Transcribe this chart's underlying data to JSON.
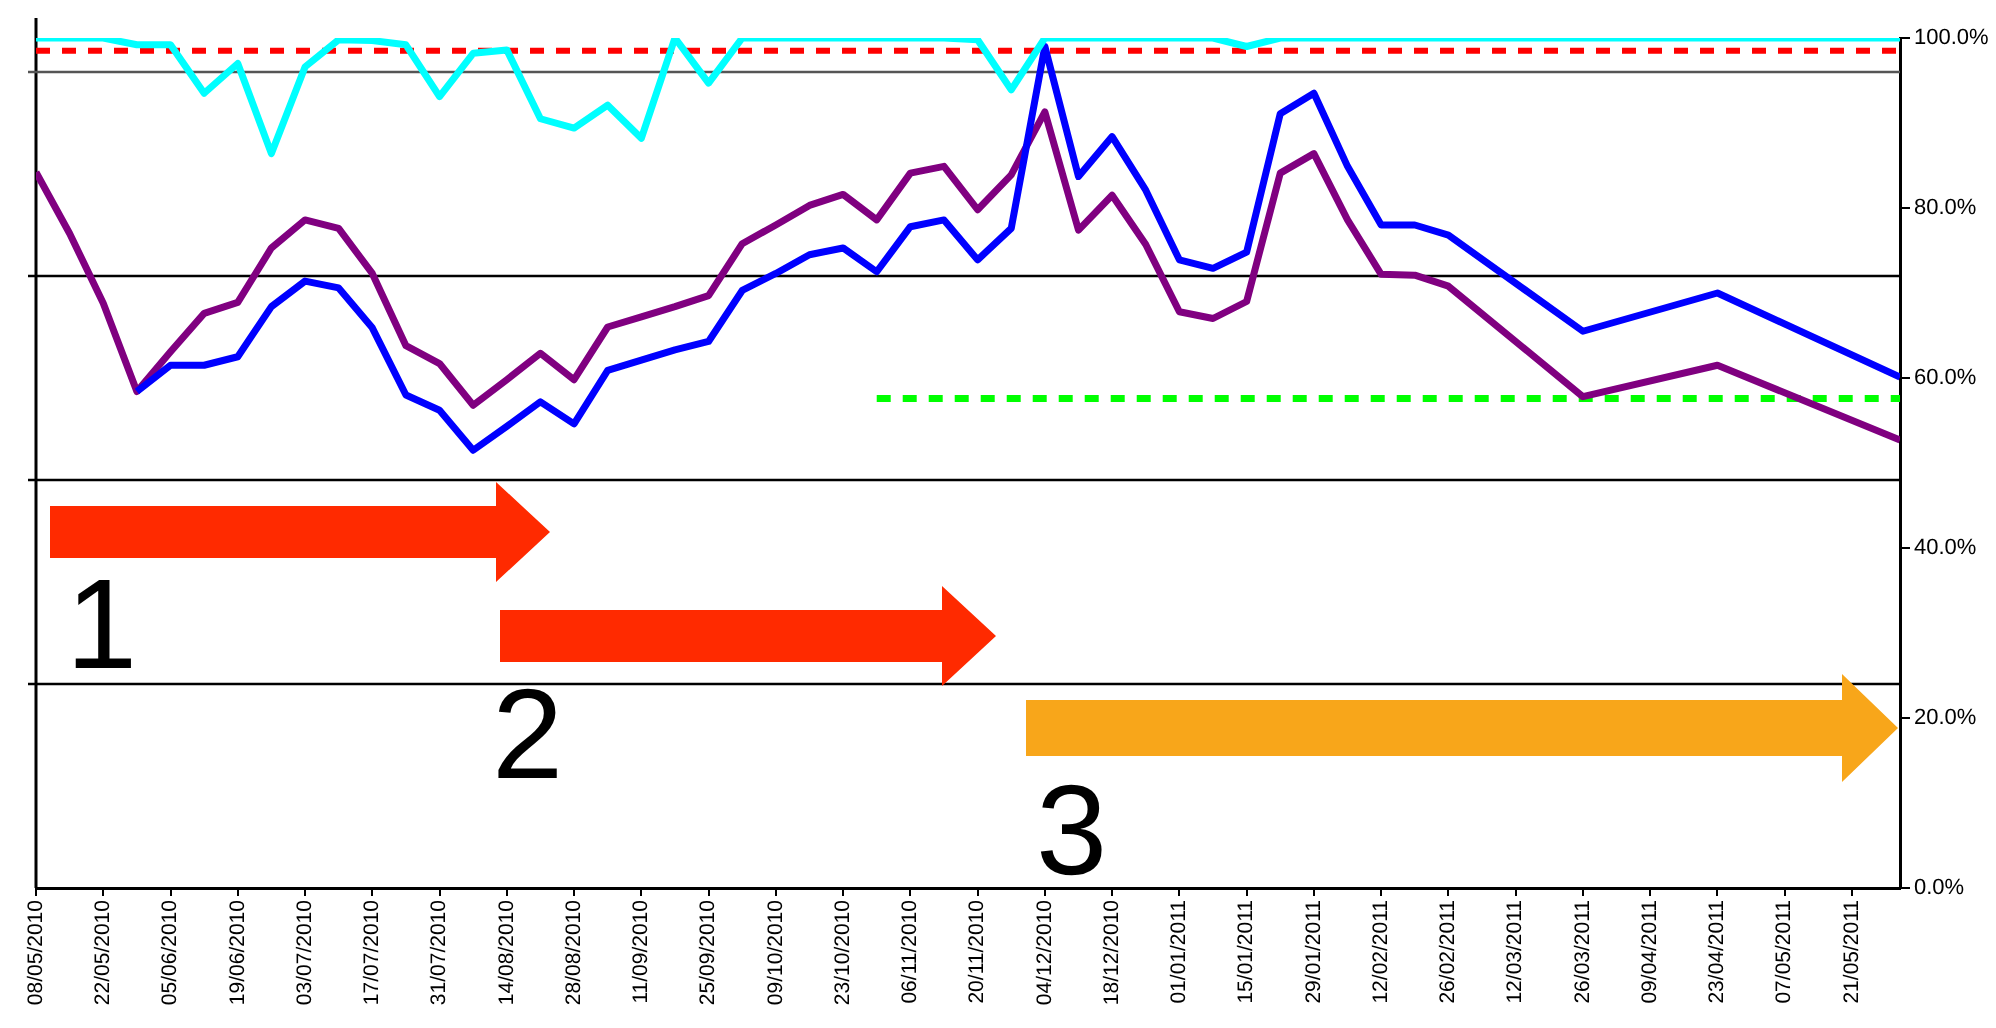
{
  "chart_data": {
    "type": "line",
    "x": [
      "2010-05-08",
      "2010-05-15",
      "2010-05-22",
      "2010-05-29",
      "2010-06-05",
      "2010-06-12",
      "2010-06-19",
      "2010-06-26",
      "2010-07-03",
      "2010-07-10",
      "2010-07-17",
      "2010-07-24",
      "2010-07-31",
      "2010-08-07",
      "2010-08-14",
      "2010-08-21",
      "2010-08-28",
      "2010-09-04",
      "2010-09-11",
      "2010-09-18",
      "2010-09-25",
      "2010-10-02",
      "2010-10-09",
      "2010-10-16",
      "2010-10-23",
      "2010-10-30",
      "2010-11-06",
      "2010-11-13",
      "2010-11-20",
      "2010-11-27",
      "2010-12-04",
      "2010-12-11",
      "2010-12-18",
      "2010-12-25",
      "2011-01-01",
      "2011-01-08",
      "2011-01-15",
      "2011-01-22",
      "2011-01-29",
      "2011-02-05",
      "2011-02-12",
      "2011-02-19",
      "2011-02-26",
      "2011-03-26",
      "2011-04-23",
      "2011-05-31"
    ],
    "xlim": [
      "2010-05-08",
      "2011-05-31"
    ],
    "xticks": [
      {
        "value": "2010-05-08",
        "label": "08/05/2010"
      },
      {
        "value": "2010-05-22",
        "label": "22/05/2010"
      },
      {
        "value": "2010-06-05",
        "label": "05/06/2010"
      },
      {
        "value": "2010-06-19",
        "label": "19/06/2010"
      },
      {
        "value": "2010-07-03",
        "label": "03/07/2010"
      },
      {
        "value": "2010-07-17",
        "label": "17/07/2010"
      },
      {
        "value": "2010-07-31",
        "label": "31/07/2010"
      },
      {
        "value": "2010-08-14",
        "label": "14/08/2010"
      },
      {
        "value": "2010-08-28",
        "label": "28/08/2010"
      },
      {
        "value": "2010-09-11",
        "label": "11/09/2010"
      },
      {
        "value": "2010-09-25",
        "label": "25/09/2010"
      },
      {
        "value": "2010-10-09",
        "label": "09/10/2010"
      },
      {
        "value": "2010-10-23",
        "label": "23/10/2010"
      },
      {
        "value": "2010-11-06",
        "label": "06/11/2010"
      },
      {
        "value": "2010-11-20",
        "label": "20/11/2010"
      },
      {
        "value": "2010-12-04",
        "label": "04/12/2010"
      },
      {
        "value": "2010-12-18",
        "label": "18/12/2010"
      },
      {
        "value": "2011-01-01",
        "label": "01/01/2011"
      },
      {
        "value": "2011-01-15",
        "label": "15/01/2011"
      },
      {
        "value": "2011-01-29",
        "label": "29/01/2011"
      },
      {
        "value": "2011-02-12",
        "label": "12/02/2011"
      },
      {
        "value": "2011-02-26",
        "label": "26/02/2011"
      },
      {
        "value": "2011-03-12",
        "label": "12/03/2011"
      },
      {
        "value": "2011-03-26",
        "label": "26/03/2011"
      },
      {
        "value": "2011-04-09",
        "label": "09/04/2011"
      },
      {
        "value": "2011-04-23",
        "label": "23/04/2011"
      },
      {
        "value": "2011-05-07",
        "label": "07/05/2011"
      },
      {
        "value": "2011-05-21",
        "label": "21/05/2011"
      }
    ],
    "ylim": [
      0,
      100
    ],
    "yticks": [
      {
        "value": 0,
        "label": "0.0%"
      },
      {
        "value": 20,
        "label": "20.0%"
      },
      {
        "value": 40,
        "label": "40.0%"
      },
      {
        "value": 60,
        "label": "60.0%"
      },
      {
        "value": 80,
        "label": "80.0%"
      },
      {
        "value": 100,
        "label": "100.0%"
      }
    ],
    "grid": false,
    "legend": false,
    "marker": "none",
    "line_style": "solid",
    "series": [
      {
        "color": "#00ffff",
        "values": [
          100,
          100,
          100,
          99.2,
          99.2,
          93.5,
          97.0,
          86.4,
          96.6,
          99.8,
          99.7,
          99.2,
          93.1,
          98.2,
          98.6,
          90.5,
          89.4,
          92.1,
          88.2,
          100,
          94.7,
          100,
          100,
          100,
          100,
          100,
          100,
          100,
          99.8,
          93.9,
          100,
          100,
          100,
          100,
          100,
          100,
          99.0,
          100,
          100,
          100,
          100,
          100,
          100,
          100,
          100,
          100
        ]
      },
      {
        "color": "#0000ff",
        "values": [
          null,
          null,
          null,
          58.4,
          61.5,
          61.5,
          62.5,
          68.4,
          71.4,
          70.6,
          65.9,
          58.0,
          56.2,
          51.5,
          54.3,
          57.2,
          54.6,
          60.9,
          62.1,
          63.3,
          64.3,
          70.3,
          72.3,
          74.5,
          75.3,
          72.5,
          77.8,
          78.6,
          73.9,
          77.6,
          99.0,
          83.7,
          88.4,
          82.1,
          73.9,
          72.9,
          74.8,
          91.1,
          93.5,
          84.9,
          78.0,
          78.0,
          76.8,
          65.5,
          70.0,
          60.1
        ]
      },
      {
        "color": "#800080",
        "values": [
          84.2,
          77.0,
          68.8,
          58.4,
          63.1,
          67.6,
          68.9,
          75.3,
          78.6,
          77.6,
          72.3,
          63.8,
          61.7,
          56.8,
          59.8,
          62.9,
          59.8,
          66.0,
          67.2,
          68.4,
          69.7,
          75.8,
          78.0,
          80.3,
          81.6,
          78.6,
          84.1,
          84.9,
          79.8,
          83.9,
          91.3,
          77.4,
          81.5,
          75.7,
          67.8,
          67.0,
          69.0,
          84.1,
          86.4,
          78.6,
          72.2,
          72.1,
          70.8,
          57.8,
          61.5,
          52.7
        ]
      },
      {
        "color": "#00ff00",
        "line_style": "dashed",
        "x": [
          "2010-10-30",
          "2011-05-31"
        ],
        "values": [
          57.6,
          57.6
        ]
      }
    ],
    "ref_lines": [
      {
        "axis": "y",
        "value": 98.5,
        "color": "#ff0000",
        "line_style": "dashed"
      },
      {
        "axis": "y",
        "value": 96,
        "color": "#555555",
        "line_style": "solid"
      },
      {
        "axis": "y",
        "value": 72,
        "color": "#000000",
        "line_style": "solid"
      },
      {
        "axis": "y",
        "value": 48,
        "color": "#000000",
        "line_style": "solid"
      },
      {
        "axis": "y",
        "value": 24,
        "color": "#000000",
        "line_style": "solid"
      }
    ],
    "annotations": [
      "1",
      "2",
      "3"
    ]
  }
}
